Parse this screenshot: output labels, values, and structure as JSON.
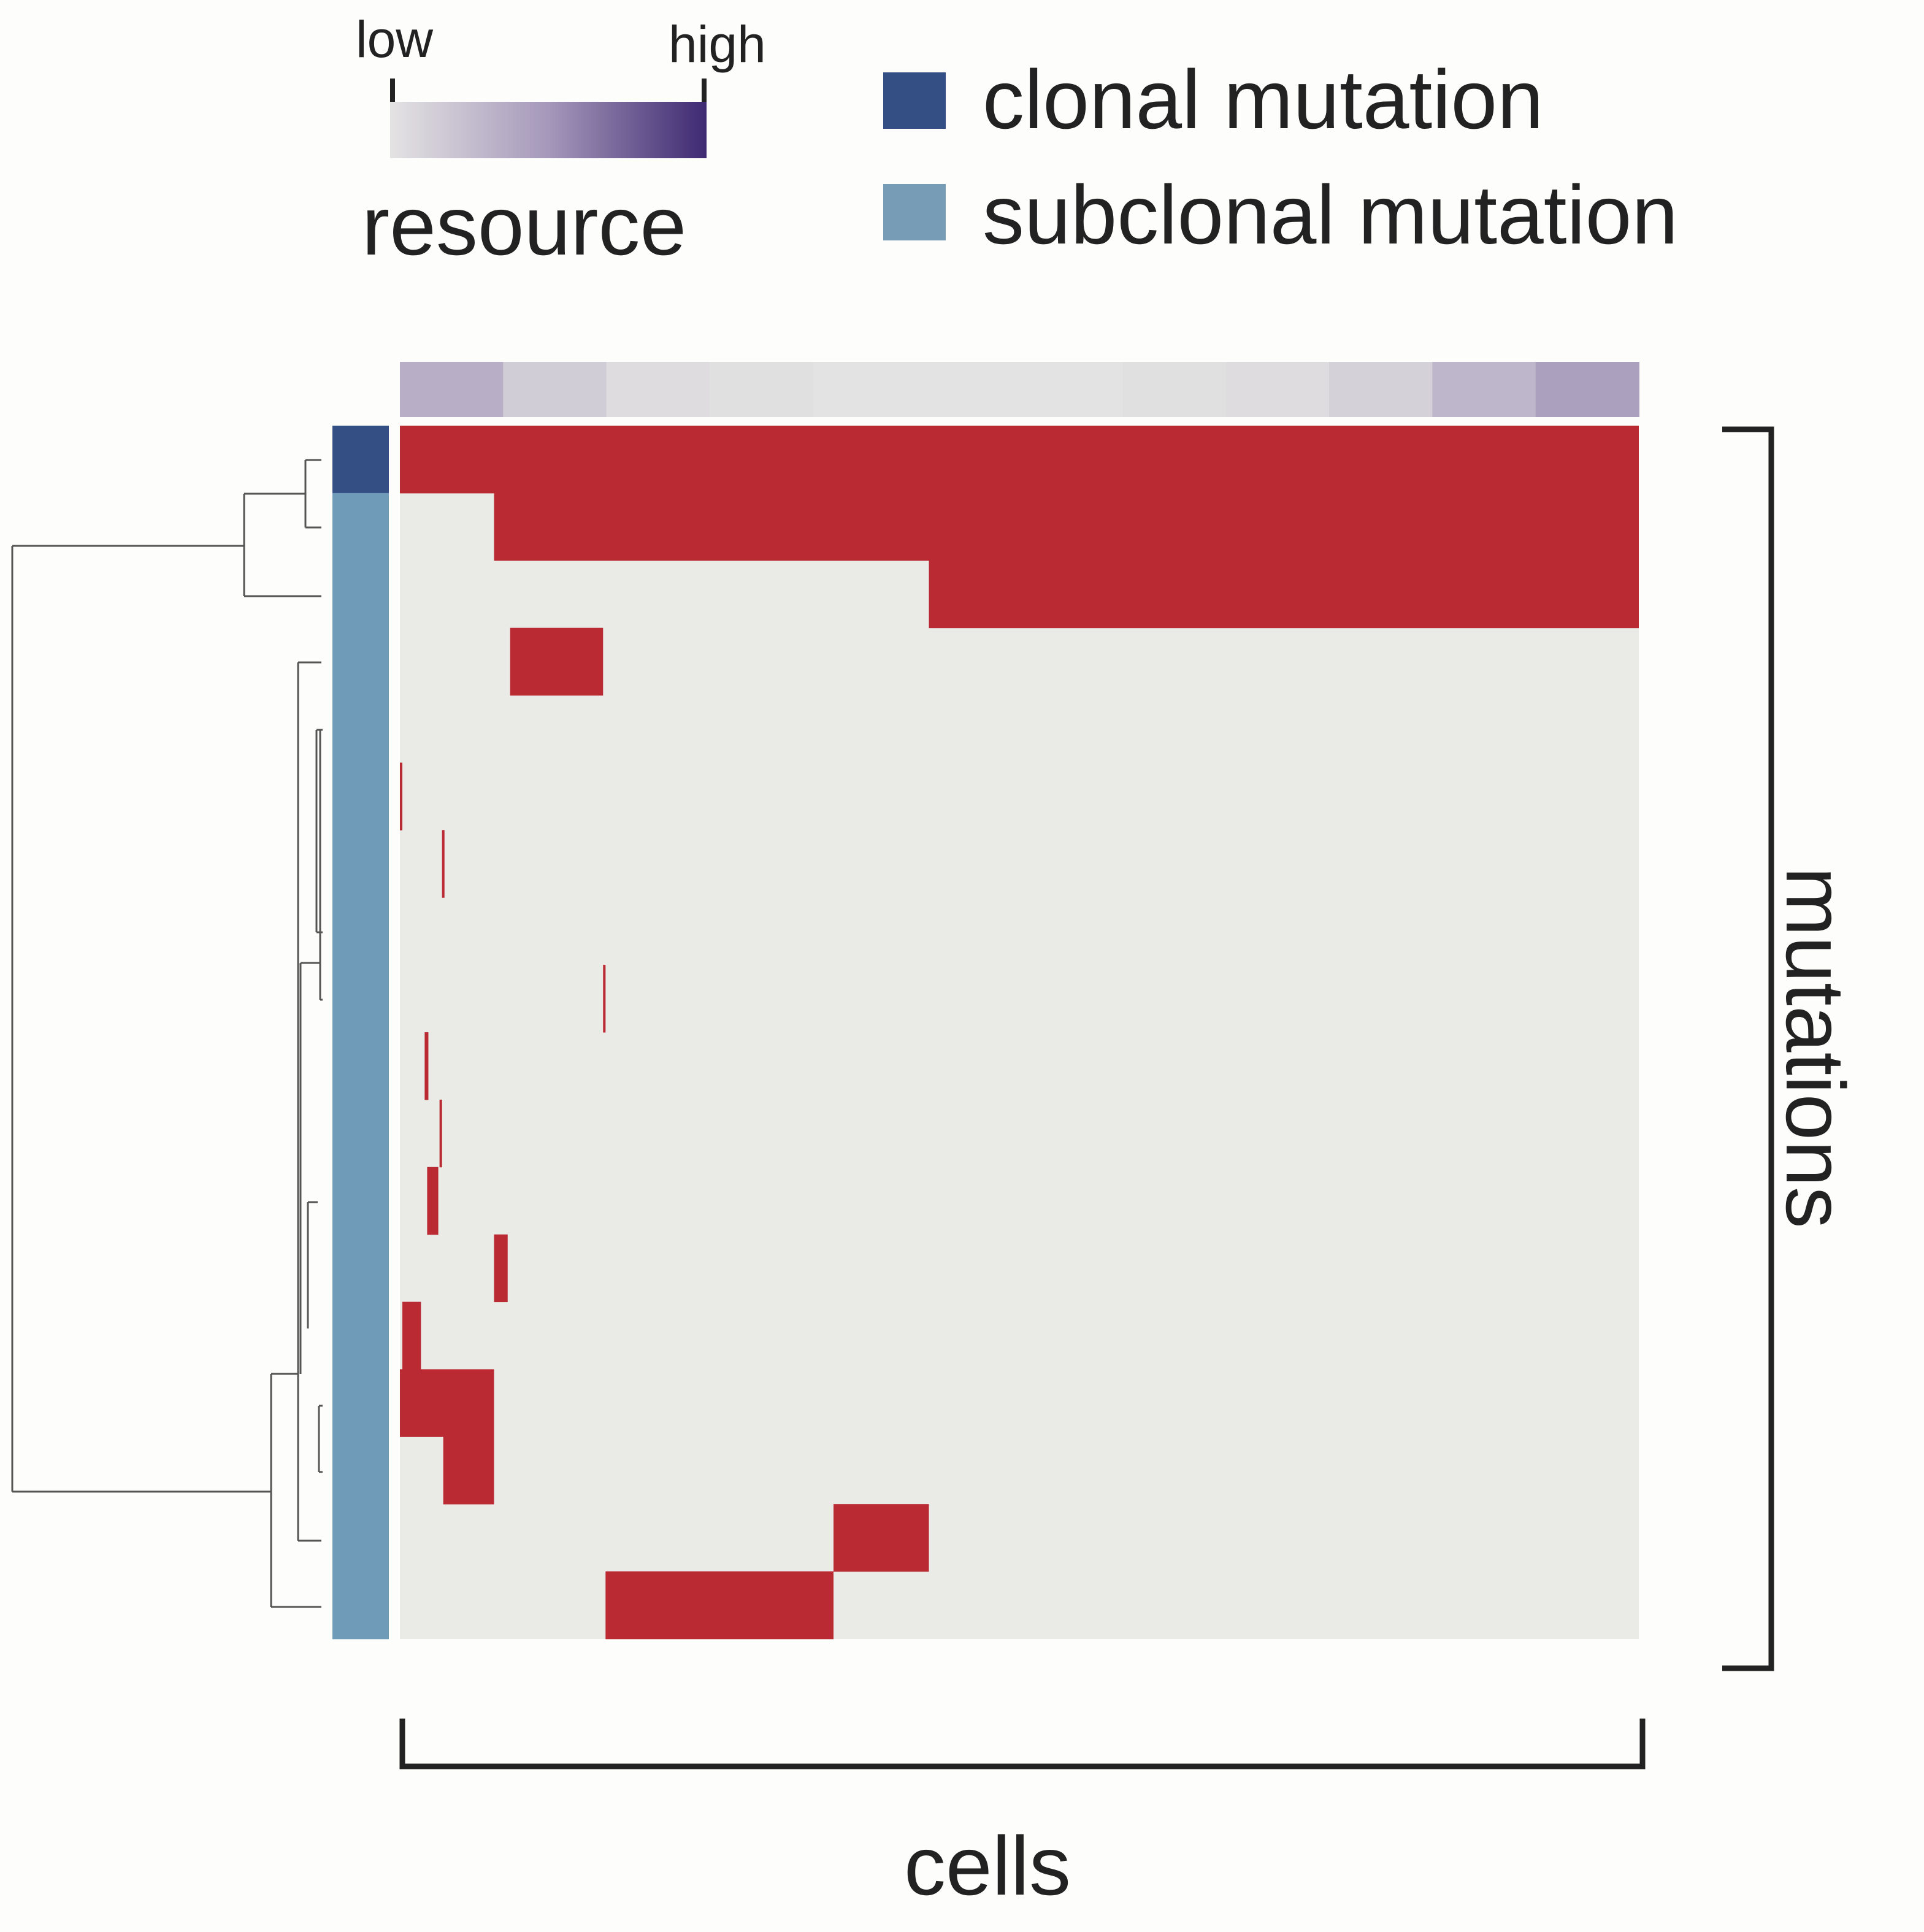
{
  "colorbar": {
    "low_label": "low",
    "high_label": "high",
    "title": "resource",
    "gradient": [
      "#e4e3e3",
      "#a598ba",
      "#3e2a72"
    ]
  },
  "legend": [
    {
      "label": "clonal mutation",
      "color": "#344f84"
    },
    {
      "label": "subclonal mutation",
      "color": "#779cb6"
    }
  ],
  "colors": {
    "mutated": "#ba2a33",
    "background": "#eaeae7",
    "clonal": "#344f84",
    "subclonal": "#6f9bb8",
    "dendrogram": "#555555",
    "bracket": "#222222"
  },
  "chart_data": {
    "type": "heatmap",
    "xlabel": "cells",
    "ylabel": "mutations",
    "n_cells": 1000,
    "n_rows": 18,
    "resource_track": [
      0.35,
      0.15,
      0.05,
      0.02,
      0.0,
      0.0,
      0.0,
      0.02,
      0.05,
      0.12,
      0.3,
      0.45
    ],
    "row_class": [
      "clonal",
      "subclonal",
      "subclonal",
      "subclonal",
      "subclonal",
      "subclonal",
      "subclonal",
      "subclonal",
      "subclonal",
      "subclonal",
      "subclonal",
      "subclonal",
      "subclonal",
      "subclonal",
      "subclonal",
      "subclonal",
      "subclonal",
      "subclonal"
    ],
    "mutated_cells": [
      [
        [
          0,
          1000
        ]
      ],
      [
        [
          76,
          1000
        ]
      ],
      [
        [
          427,
          1000
        ]
      ],
      [
        [
          89,
          164
        ]
      ],
      [],
      [
        [
          0,
          2
        ]
      ],
      [
        [
          34,
          36
        ]
      ],
      [],
      [
        [
          164,
          166
        ]
      ],
      [
        [
          20,
          23
        ]
      ],
      [
        [
          32,
          34
        ]
      ],
      [
        [
          22,
          31
        ]
      ],
      [
        [
          76,
          87
        ]
      ],
      [
        [
          2,
          17
        ]
      ],
      [
        [
          0,
          76
        ]
      ],
      [
        [
          35,
          76
        ]
      ],
      [
        [
          350,
          427
        ]
      ],
      [
        [
          166,
          350
        ]
      ]
    ]
  }
}
